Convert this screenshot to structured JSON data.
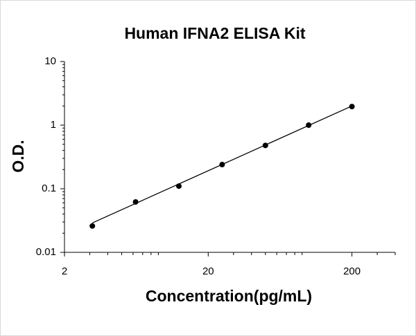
{
  "chart_data": {
    "type": "scatter",
    "title": "Human IFNA2 ELISA Kit",
    "x_label": "Concentration(pg/mL)",
    "y_label": "O.D.",
    "x_log": true,
    "y_log": true,
    "x": [
      3.125,
      6.25,
      12.5,
      25,
      50,
      100,
      200
    ],
    "series": [
      {
        "color": "#000000",
        "values": [
          0.026,
          0.062,
          0.11,
          0.24,
          0.48,
          1.0,
          1.96
        ]
      }
    ],
    "trendline": {
      "color": "#000000",
      "x": [
        3.125,
        200
      ],
      "values": [
        0.029,
        2.0
      ]
    },
    "xlim": [
      2,
      400
    ],
    "ylim": [
      0.01,
      10
    ],
    "xticks": [
      2,
      20,
      200
    ],
    "yticks": [
      0.01,
      0.1,
      1,
      10
    ],
    "xminorticks": [
      3,
      4,
      5,
      6,
      7,
      8,
      9,
      30,
      40,
      50,
      60,
      70,
      80,
      90,
      300,
      400
    ],
    "yminorticks": [
      0.02,
      0.03,
      0.04,
      0.05,
      0.06,
      0.07,
      0.08,
      0.09,
      0.2,
      0.3,
      0.4,
      0.5,
      0.6,
      0.7,
      0.8,
      0.9,
      2,
      3,
      4,
      5,
      6,
      7,
      8,
      9
    ]
  }
}
